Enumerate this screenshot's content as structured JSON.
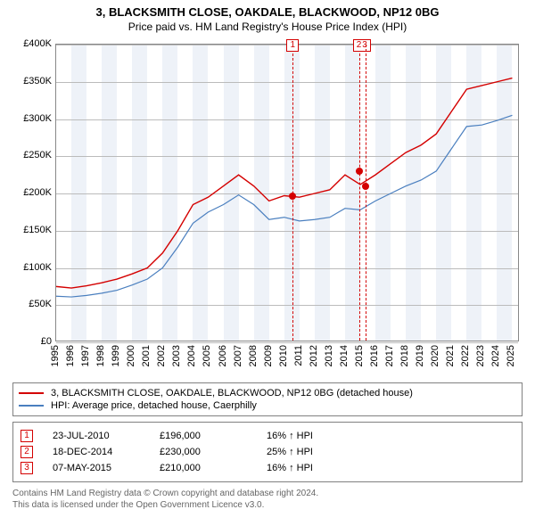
{
  "header": {
    "title": "3, BLACKSMITH CLOSE, OAKDALE, BLACKWOOD, NP12 0BG",
    "subtitle": "Price paid vs. HM Land Registry's House Price Index (HPI)"
  },
  "chart": {
    "type": "line",
    "background_color": "#ffffff",
    "band_color_light": "#ffffff",
    "band_color_dark": "#eef2f8",
    "grid_color": "#bbbbbb",
    "axis_color": "#888888",
    "tick_fontsize": 11,
    "x": {
      "min": 1995,
      "max": 2025.5,
      "ticks": [
        1995,
        1996,
        1997,
        1998,
        1999,
        2000,
        2001,
        2002,
        2003,
        2004,
        2005,
        2006,
        2007,
        2008,
        2009,
        2010,
        2011,
        2012,
        2013,
        2014,
        2015,
        2016,
        2017,
        2018,
        2019,
        2020,
        2021,
        2022,
        2023,
        2024,
        2025
      ]
    },
    "y": {
      "min": 0,
      "max": 400000,
      "ticks": [
        0,
        50000,
        100000,
        150000,
        200000,
        250000,
        300000,
        350000,
        400000
      ],
      "tick_prefix": "£",
      "tick_suffix": "K",
      "tick_divisor": 1000
    },
    "series": [
      {
        "name": "price_paid",
        "color": "#d40000",
        "width": 1.4,
        "data": [
          [
            1995,
            75000
          ],
          [
            1996,
            73000
          ],
          [
            1997,
            76000
          ],
          [
            1998,
            80000
          ],
          [
            1999,
            85000
          ],
          [
            2000,
            92000
          ],
          [
            2001,
            100000
          ],
          [
            2002,
            120000
          ],
          [
            2003,
            150000
          ],
          [
            2004,
            185000
          ],
          [
            2005,
            195000
          ],
          [
            2006,
            210000
          ],
          [
            2007,
            225000
          ],
          [
            2008,
            210000
          ],
          [
            2009,
            190000
          ],
          [
            2010,
            197000
          ],
          [
            2011,
            195000
          ],
          [
            2012,
            200000
          ],
          [
            2013,
            205000
          ],
          [
            2014,
            225000
          ],
          [
            2015,
            212000
          ],
          [
            2016,
            225000
          ],
          [
            2017,
            240000
          ],
          [
            2018,
            255000
          ],
          [
            2019,
            265000
          ],
          [
            2020,
            280000
          ],
          [
            2021,
            310000
          ],
          [
            2022,
            340000
          ],
          [
            2023,
            345000
          ],
          [
            2024,
            350000
          ],
          [
            2025,
            355000
          ]
        ]
      },
      {
        "name": "hpi",
        "color": "#4a7fbf",
        "width": 1.2,
        "data": [
          [
            1995,
            62000
          ],
          [
            1996,
            61000
          ],
          [
            1997,
            63000
          ],
          [
            1998,
            66000
          ],
          [
            1999,
            70000
          ],
          [
            2000,
            77000
          ],
          [
            2001,
            85000
          ],
          [
            2002,
            100000
          ],
          [
            2003,
            128000
          ],
          [
            2004,
            160000
          ],
          [
            2005,
            175000
          ],
          [
            2006,
            185000
          ],
          [
            2007,
            198000
          ],
          [
            2008,
            185000
          ],
          [
            2009,
            165000
          ],
          [
            2010,
            168000
          ],
          [
            2011,
            163000
          ],
          [
            2012,
            165000
          ],
          [
            2013,
            168000
          ],
          [
            2014,
            180000
          ],
          [
            2015,
            178000
          ],
          [
            2016,
            190000
          ],
          [
            2017,
            200000
          ],
          [
            2018,
            210000
          ],
          [
            2019,
            218000
          ],
          [
            2020,
            230000
          ],
          [
            2021,
            260000
          ],
          [
            2022,
            290000
          ],
          [
            2023,
            292000
          ],
          [
            2024,
            298000
          ],
          [
            2025,
            305000
          ]
        ]
      }
    ],
    "sale_markers": [
      {
        "n": "1",
        "year": 2010.56,
        "y_label_offset": -6,
        "color": "#d40000"
      },
      {
        "n": "2",
        "year": 2014.96,
        "y_label_offset": -6,
        "color": "#d40000",
        "label_combined": "23"
      },
      {
        "n": "3",
        "year": 2015.35,
        "y_label_offset": -6,
        "color": "#d40000",
        "suppress_label": true
      }
    ],
    "sale_points": [
      {
        "year": 2010.56,
        "value": 196000,
        "color": "#d40000"
      },
      {
        "year": 2014.96,
        "value": 230000,
        "color": "#d40000"
      },
      {
        "year": 2015.35,
        "value": 210000,
        "color": "#d40000"
      }
    ]
  },
  "legend": {
    "items": [
      {
        "color": "#d40000",
        "label": "3, BLACKSMITH CLOSE, OAKDALE, BLACKWOOD, NP12 0BG (detached house)"
      },
      {
        "color": "#4a7fbf",
        "label": "HPI: Average price, detached house, Caerphilly"
      }
    ]
  },
  "sales": {
    "rows": [
      {
        "n": "1",
        "color": "#d40000",
        "date": "23-JUL-2010",
        "price": "£196,000",
        "diff": "16% ↑ HPI"
      },
      {
        "n": "2",
        "color": "#d40000",
        "date": "18-DEC-2014",
        "price": "£230,000",
        "diff": "25% ↑ HPI"
      },
      {
        "n": "3",
        "color": "#d40000",
        "date": "07-MAY-2015",
        "price": "£210,000",
        "diff": "16% ↑ HPI"
      }
    ]
  },
  "footer": {
    "line1": "Contains HM Land Registry data © Crown copyright and database right 2024.",
    "line2": "This data is licensed under the Open Government Licence v3.0."
  }
}
